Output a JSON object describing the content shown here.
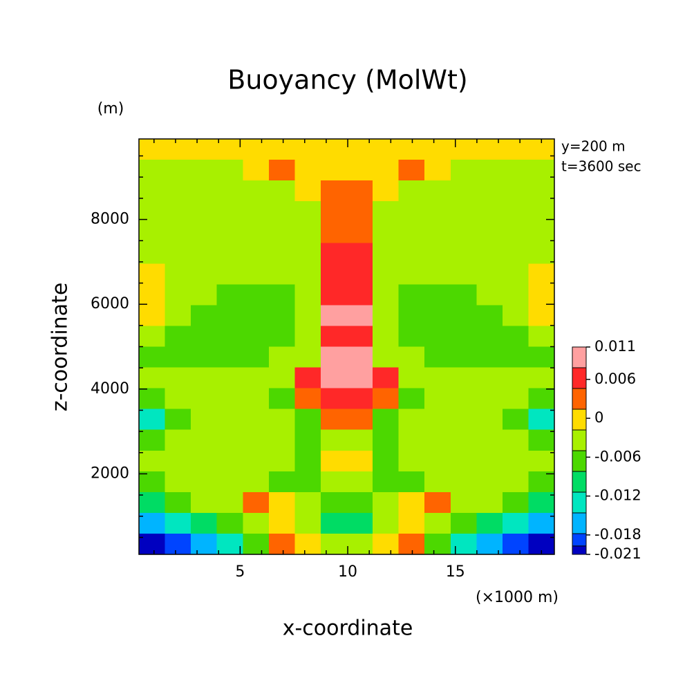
{
  "chart_data": {
    "type": "contour",
    "title": "Buoyancy (MolWt)",
    "y_unit": "(m)",
    "x_unit": "(×1000 m)",
    "xlabel": "x-coordinate",
    "ylabel": "z-coordinate",
    "annotations": [
      "y=200 m",
      "t=3600 sec"
    ],
    "xlim": [
      0.3,
      19.6
    ],
    "ylim": [
      100,
      9900
    ],
    "xticks": [
      5,
      10,
      15
    ],
    "yticks": [
      2000,
      4000,
      6000,
      8000
    ],
    "xminorticks": [
      1,
      2,
      3,
      4,
      6,
      7,
      8,
      9,
      11,
      12,
      13,
      14,
      16,
      17,
      18,
      19
    ],
    "yminorticks": [
      500,
      1000,
      1500,
      2500,
      3000,
      3500,
      4500,
      5000,
      5500,
      6500,
      7000,
      7500,
      8500,
      9000,
      9500
    ],
    "x": [
      0.9,
      2.11,
      3.32,
      4.52,
      5.73,
      6.93,
      8.14,
      9.35,
      10.55,
      11.76,
      12.97,
      14.17,
      15.38,
      16.58,
      17.79,
      19.0
    ],
    "y": [
      9655,
      9165,
      8675,
      8185,
      7695,
      7205,
      6715,
      6225,
      5735,
      5245,
      4755,
      4265,
      3775,
      3285,
      2795,
      2305,
      1815,
      1325,
      835,
      345
    ],
    "z": [
      [
        0,
        0,
        0,
        0,
        0,
        0,
        0,
        0,
        0,
        0,
        0,
        0,
        0,
        0,
        0,
        0
      ],
      [
        -0.003,
        -0.003,
        -0.003,
        -0.003,
        0,
        0.003,
        0,
        0,
        0,
        0,
        0.003,
        0,
        -0.003,
        -0.003,
        -0.003,
        -0.003
      ],
      [
        -0.003,
        -0.003,
        -0.003,
        -0.003,
        -0.003,
        -0.003,
        0,
        0.003,
        0.003,
        0,
        -0.003,
        -0.003,
        -0.003,
        -0.003,
        -0.003,
        -0.003
      ],
      [
        -0.003,
        -0.003,
        -0.003,
        -0.003,
        -0.003,
        -0.003,
        -0.003,
        0.003,
        0.003,
        -0.003,
        -0.003,
        -0.003,
        -0.003,
        -0.003,
        -0.003,
        -0.003
      ],
      [
        -0.003,
        -0.003,
        -0.003,
        -0.003,
        -0.003,
        -0.003,
        -0.003,
        0.003,
        0.003,
        -0.003,
        -0.003,
        -0.003,
        -0.003,
        -0.003,
        -0.003,
        -0.003
      ],
      [
        -0.003,
        -0.003,
        -0.003,
        -0.003,
        -0.003,
        -0.003,
        -0.003,
        0.006,
        0.006,
        -0.003,
        -0.003,
        -0.003,
        -0.003,
        -0.003,
        -0.003,
        -0.003
      ],
      [
        0,
        -0.003,
        -0.003,
        -0.003,
        -0.003,
        -0.003,
        -0.003,
        0.006,
        0.006,
        -0.003,
        -0.003,
        -0.003,
        -0.003,
        -0.003,
        -0.003,
        0
      ],
      [
        0,
        -0.003,
        -0.003,
        -0.007,
        -0.007,
        -0.007,
        -0.003,
        0.006,
        0.006,
        -0.003,
        -0.007,
        -0.007,
        -0.007,
        -0.003,
        -0.003,
        0
      ],
      [
        0,
        -0.003,
        -0.007,
        -0.007,
        -0.007,
        -0.007,
        -0.003,
        0.009,
        0.009,
        -0.003,
        -0.007,
        -0.007,
        -0.007,
        -0.007,
        -0.003,
        0
      ],
      [
        -0.003,
        -0.007,
        -0.007,
        -0.007,
        -0.007,
        -0.007,
        -0.003,
        0.006,
        0.006,
        -0.003,
        -0.007,
        -0.007,
        -0.007,
        -0.007,
        -0.007,
        -0.003
      ],
      [
        -0.007,
        -0.007,
        -0.007,
        -0.007,
        -0.007,
        -0.003,
        -0.003,
        0.009,
        0.009,
        -0.003,
        -0.003,
        -0.007,
        -0.007,
        -0.007,
        -0.007,
        -0.007
      ],
      [
        -0.003,
        -0.003,
        -0.003,
        -0.003,
        -0.003,
        -0.003,
        0.006,
        0.009,
        0.009,
        0.006,
        -0.003,
        -0.003,
        -0.003,
        -0.003,
        -0.003,
        -0.003
      ],
      [
        -0.007,
        -0.003,
        -0.003,
        -0.003,
        -0.003,
        -0.007,
        0.003,
        0.006,
        0.006,
        0.003,
        -0.007,
        -0.003,
        -0.003,
        -0.003,
        -0.003,
        -0.007
      ],
      [
        -0.013,
        -0.007,
        -0.003,
        -0.003,
        -0.003,
        -0.003,
        -0.007,
        0.003,
        0.003,
        -0.007,
        -0.003,
        -0.003,
        -0.003,
        -0.003,
        -0.007,
        -0.013
      ],
      [
        -0.007,
        -0.003,
        -0.003,
        -0.003,
        -0.003,
        -0.003,
        -0.007,
        -0.003,
        -0.003,
        -0.007,
        -0.003,
        -0.003,
        -0.003,
        -0.003,
        -0.003,
        -0.007
      ],
      [
        -0.003,
        -0.003,
        -0.003,
        -0.003,
        -0.003,
        -0.003,
        -0.007,
        0,
        0,
        -0.007,
        -0.003,
        -0.003,
        -0.003,
        -0.003,
        -0.003,
        -0.003
      ],
      [
        -0.007,
        -0.003,
        -0.003,
        -0.003,
        -0.003,
        -0.007,
        -0.007,
        -0.003,
        -0.003,
        -0.007,
        -0.007,
        -0.003,
        -0.003,
        -0.003,
        -0.003,
        -0.007
      ],
      [
        -0.01,
        -0.007,
        -0.003,
        -0.003,
        0.003,
        0,
        -0.003,
        -0.007,
        -0.007,
        -0.003,
        0,
        0.003,
        -0.003,
        -0.003,
        -0.007,
        -0.01
      ],
      [
        -0.016,
        -0.013,
        -0.01,
        -0.007,
        -0.003,
        0,
        -0.003,
        -0.01,
        -0.01,
        -0.003,
        0,
        -0.003,
        -0.007,
        -0.01,
        -0.013,
        -0.016
      ],
      [
        -0.02,
        -0.019,
        -0.016,
        -0.013,
        -0.007,
        0.003,
        0,
        -0.003,
        -0.003,
        0,
        0.003,
        -0.007,
        -0.013,
        -0.016,
        -0.019,
        -0.02
      ]
    ],
    "colorbar": {
      "levels": [
        -0.021,
        -0.0197,
        -0.0178,
        -0.0146,
        -0.0114,
        -0.0082,
        -0.005,
        -0.0018,
        0.0014,
        0.0046,
        0.0078,
        0.011
      ],
      "colors": [
        "#0000c0",
        "#0044ff",
        "#00b4ff",
        "#00e6c0",
        "#00dc64",
        "#4cd800",
        "#a8f000",
        "#ffdc00",
        "#ff6400",
        "#ff2828",
        "#ffa0a0"
      ],
      "ticks": [
        0.011,
        0.006,
        0,
        -0.006,
        -0.012,
        -0.018,
        -0.021
      ]
    }
  }
}
